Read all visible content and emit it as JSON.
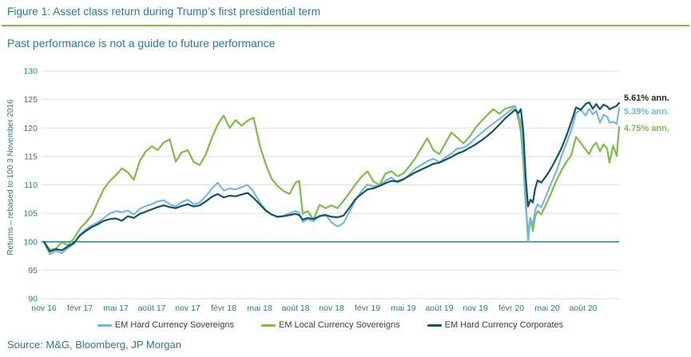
{
  "header": {
    "figure_title": "Figure 1: Asset class return during Trump’s first presidential term",
    "subtitle": "Past performance is not a guide to future performance"
  },
  "source": "Source: M&G, Bloomberg, JP Morgan",
  "colors": {
    "teal_text": "#2C7A87",
    "green_accent": "#7DBB4B",
    "blue_series": "#74B4E0",
    "dark_series": "#14545E",
    "baseline_teal": "#2E808D",
    "gridline": "#DEDEDE",
    "annotation_dark": "#262626"
  },
  "chart_data": {
    "type": "line",
    "title": "",
    "xlabel": "",
    "ylabel": "Returns – rebased to 100 3 November 2016",
    "ylim": [
      90,
      130
    ],
    "yticks": [
      90,
      95,
      100,
      105,
      110,
      115,
      120,
      125,
      130
    ],
    "baseline": 100,
    "grid": "horizontal",
    "legend_position": "bottom",
    "xtick_labels": [
      "nov 16",
      "févr 17",
      "mai 17",
      "août 17",
      "nov 17",
      "févr 18",
      "mai 18",
      "août 18",
      "nov 18",
      "févr 19",
      "mai 19",
      "août 19",
      "nov 19",
      "févr 20",
      "mai 20",
      "août 20"
    ],
    "xtick_months": [
      0,
      3,
      6,
      9,
      12,
      15,
      18,
      21,
      24,
      27,
      30,
      33,
      36,
      39,
      42,
      45
    ],
    "x_months": [
      0,
      0.5,
      1,
      1.5,
      2,
      2.5,
      3,
      3.5,
      4,
      4.5,
      5,
      5.5,
      6,
      6.5,
      7,
      7.5,
      8,
      8.5,
      9,
      9.5,
      10,
      10.5,
      11,
      11.5,
      12,
      12.5,
      13,
      13.5,
      14,
      14.5,
      15,
      15.5,
      16,
      16.5,
      17,
      17.5,
      18,
      18.5,
      19,
      19.5,
      20,
      20.5,
      21,
      21.3,
      21.6,
      22,
      22.5,
      23,
      23.5,
      24,
      24.5,
      25,
      25.5,
      26,
      26.5,
      27,
      27.5,
      28,
      28.5,
      29,
      29.5,
      30,
      30.5,
      31,
      31.5,
      32,
      32.5,
      33,
      33.5,
      34,
      34.5,
      35,
      35.5,
      36,
      36.5,
      37,
      37.5,
      38,
      38.5,
      39,
      39.3,
      39.6,
      39.8,
      40,
      40.2,
      40.4,
      40.6,
      40.8,
      41,
      41.2,
      41.5,
      42,
      42.4,
      42.8,
      43.2,
      43.6,
      44,
      44.4,
      44.8,
      45.2,
      45.5,
      45.8,
      46.1,
      46.4,
      46.7,
      47,
      47.2,
      47.5,
      47.8,
      48
    ],
    "series": [
      {
        "name": "EM Hard Currency Sovereigns",
        "color": "#74B4E0",
        "annotation": "5.39% ann.",
        "annotation_color": "#74B4E0",
        "values": [
          100,
          97.8,
          98.4,
          98.0,
          98.9,
          99.6,
          101.3,
          102.2,
          102.9,
          103.4,
          104.2,
          105.0,
          105.4,
          105.2,
          105.5,
          104.8,
          105.8,
          106.3,
          106.6,
          107.1,
          107.3,
          106.6,
          106.2,
          107.0,
          107.4,
          106.6,
          106.9,
          108.0,
          109.3,
          110.4,
          109.0,
          109.4,
          109.2,
          109.6,
          110.0,
          108.8,
          107.0,
          105.6,
          104.8,
          104.3,
          104.6,
          105.0,
          105.4,
          105.1,
          103.5,
          104.0,
          103.6,
          104.6,
          104.8,
          103.4,
          102.7,
          103.3,
          105.3,
          107.3,
          108.9,
          110.1,
          109.7,
          110.0,
          110.7,
          111.3,
          110.4,
          110.9,
          111.8,
          112.9,
          113.5,
          114.2,
          114.6,
          114.0,
          114.8,
          115.5,
          116.4,
          116.5,
          117.2,
          118.2,
          119.1,
          120.0,
          120.8,
          121.6,
          122.4,
          123.2,
          123.9,
          122.3,
          121.0,
          116.2,
          107.8,
          99.9,
          104.1,
          103.0,
          105.6,
          106.6,
          106.0,
          108.6,
          110.6,
          112.6,
          115.1,
          117.3,
          119.5,
          122.6,
          123.2,
          122.2,
          123.4,
          122.4,
          123.0,
          120.9,
          122.3,
          122.0,
          120.9,
          121.1,
          120.7,
          123.5
        ]
      },
      {
        "name": "EM Local Currency Sovereigns",
        "color": "#7DBB4B",
        "annotation": "4.75% ann.",
        "annotation_color": "#7DBB4B",
        "values": [
          100,
          98.6,
          98.8,
          99.9,
          99.4,
          100.6,
          102.3,
          103.4,
          104.7,
          107.1,
          109.3,
          110.7,
          111.7,
          112.9,
          112.2,
          110.9,
          114.2,
          115.9,
          116.8,
          116.1,
          117.5,
          118.0,
          114.1,
          115.7,
          116.1,
          114.0,
          113.5,
          115.3,
          118.2,
          120.6,
          122.2,
          120.0,
          121.4,
          120.4,
          121.3,
          121.8,
          117.0,
          113.7,
          111.1,
          109.8,
          108.9,
          108.4,
          110.4,
          110.7,
          104.9,
          105.4,
          103.9,
          106.5,
          105.9,
          106.4,
          105.9,
          107.2,
          108.6,
          110.1,
          111.4,
          112.4,
          110.6,
          110.0,
          112.0,
          112.4,
          111.5,
          112.0,
          113.3,
          114.7,
          116.5,
          118.2,
          116.1,
          115.4,
          117.3,
          119.2,
          118.3,
          117.3,
          118.4,
          120.0,
          121.2,
          122.3,
          123.3,
          122.5,
          123.4,
          123.7,
          123.9,
          121.5,
          119.3,
          114.3,
          106.5,
          101.4,
          104.2,
          101.9,
          104.5,
          105.4,
          104.8,
          107.0,
          108.9,
          110.9,
          112.6,
          114.0,
          115.2,
          118.4,
          117.4,
          116.2,
          115.4,
          116.8,
          117.4,
          115.9,
          117.1,
          116.4,
          113.9,
          116.9,
          115.1,
          120.2
        ]
      },
      {
        "name": "EM Hard Currency Corporates",
        "color": "#14545E",
        "annotation": "5.61% ann.",
        "annotation_color": "#262626",
        "values": [
          100,
          98.3,
          98.7,
          98.5,
          99.2,
          99.8,
          101.1,
          101.9,
          102.6,
          103.1,
          103.7,
          104.0,
          104.1,
          103.7,
          104.5,
          104.2,
          104.9,
          105.3,
          105.7,
          106.1,
          106.4,
          106.1,
          105.9,
          106.3,
          106.6,
          106.2,
          106.4,
          107.1,
          107.9,
          108.4,
          107.8,
          108.1,
          108.0,
          108.3,
          108.6,
          107.7,
          106.6,
          105.5,
          104.8,
          104.4,
          104.5,
          104.7,
          104.9,
          104.7,
          103.9,
          104.2,
          104.0,
          104.5,
          104.7,
          104.4,
          104.3,
          104.6,
          106.0,
          107.5,
          108.4,
          109.2,
          109.4,
          109.8,
          110.3,
          110.7,
          110.6,
          111.0,
          111.6,
          112.2,
          112.7,
          113.2,
          113.7,
          113.9,
          114.4,
          114.9,
          115.5,
          115.9,
          116.5,
          117.1,
          117.8,
          118.6,
          119.5,
          120.6,
          121.7,
          122.6,
          123.2,
          122.6,
          123.3,
          119.5,
          111.5,
          106.2,
          107.4,
          106.9,
          109.4,
          110.8,
          110.4,
          111.8,
          113.2,
          114.8,
          116.5,
          118.6,
          121.0,
          123.6,
          123.2,
          124.2,
          124.5,
          123.4,
          124.2,
          123.3,
          124.1,
          123.8,
          123.3,
          123.6,
          123.9,
          124.4
        ]
      }
    ]
  }
}
